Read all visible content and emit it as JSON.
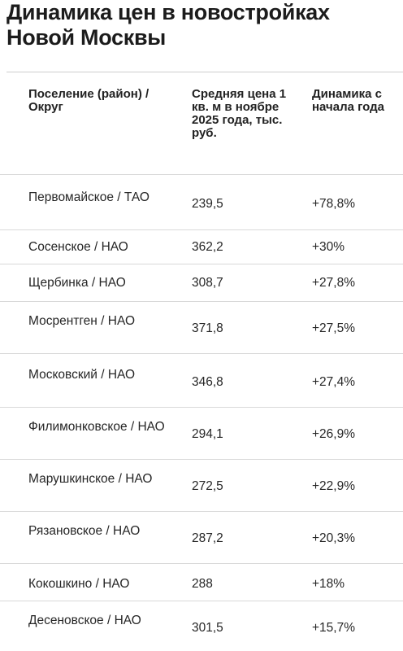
{
  "title": "Динамика цен в новостройках Новой Москвы",
  "columns": {
    "settlement": "Поселение (район) / Округ",
    "price": "Средняя цена 1 кв. м в ноябре 2025 года, тыс. руб.",
    "dynamics": "Динамика с начала года"
  },
  "rows": [
    {
      "name": "Первомайское / ТАО",
      "price": "239,5",
      "dynamics": "+78,8%"
    },
    {
      "name": "Сосенское / НАО",
      "price": "362,2",
      "dynamics": "+30%"
    },
    {
      "name": "Щербинка / НАО",
      "price": "308,7",
      "dynamics": "+27,8%"
    },
    {
      "name": "Мосрентген / НАО",
      "price": "371,8",
      "dynamics": "+27,5%"
    },
    {
      "name": "Московский / НАО",
      "price": "346,8",
      "dynamics": "+27,4%"
    },
    {
      "name": "Филимонковское / НАО",
      "price": "294,1",
      "dynamics": "+26,9%"
    },
    {
      "name": "Марушкинское / НАО",
      "price": "272,5",
      "dynamics": "+22,9%"
    },
    {
      "name": "Рязановское / НАО",
      "price": "287,2",
      "dynamics": "+20,3%"
    },
    {
      "name": "Кокошкино / НАО",
      "price": "288",
      "dynamics": "+18%"
    },
    {
      "name": "Десеновское / НАО",
      "price": "301,5",
      "dynamics": "+15,7%"
    }
  ]
}
